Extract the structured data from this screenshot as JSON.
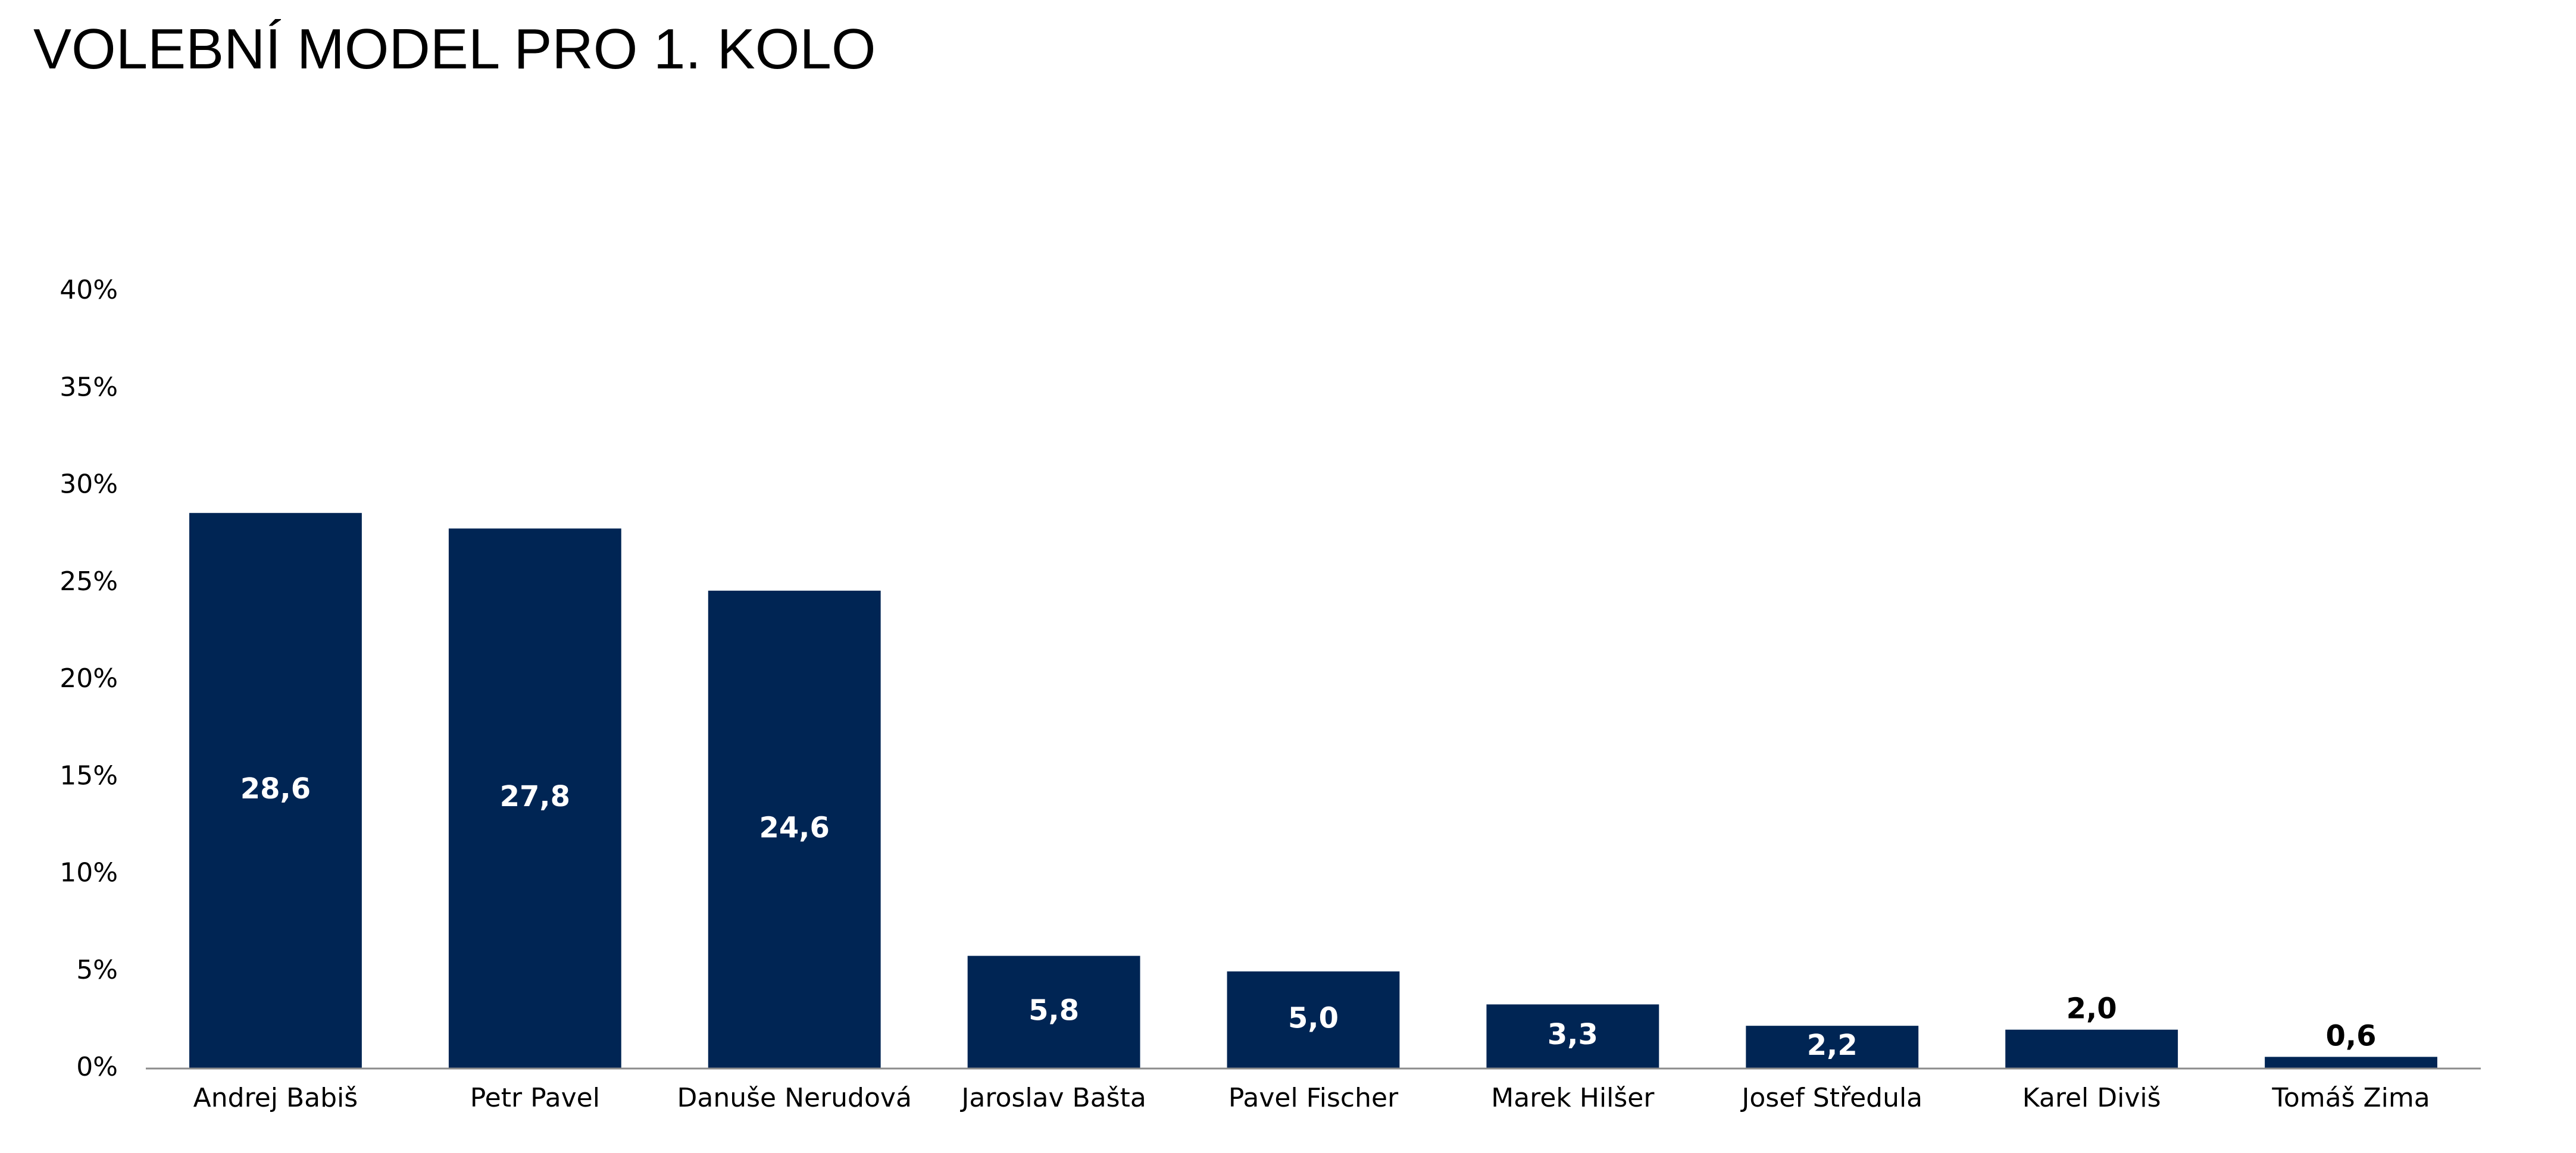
{
  "title": "VOLEBNÍ MODEL PRO 1. KOLO",
  "chart_data": {
    "type": "bar",
    "title": "VOLEBNÍ MODEL PRO 1. KOLO",
    "xlabel": "",
    "ylabel": "",
    "categories": [
      "Andrej Babiš",
      "Petr Pavel",
      "Danuše Nerudová",
      "Jaroslav Bašta",
      "Pavel Fischer",
      "Marek Hilšer",
      "Josef Středula",
      "Karel Diviš",
      "Tomáš Zima"
    ],
    "values": [
      28.6,
      27.8,
      24.6,
      5.8,
      5.0,
      3.3,
      2.2,
      2.0,
      0.6
    ],
    "data_labels": [
      "28,6",
      "27,8",
      "24,6",
      "5,8",
      "5,0",
      "3,3",
      "2,2",
      "2,0",
      "0,6"
    ],
    "yticks": [
      "0%",
      "5%",
      "10%",
      "15%",
      "20%",
      "25%",
      "30%",
      "35%",
      "40%"
    ],
    "ylim": [
      0,
      40
    ],
    "grid": false,
    "legend": "none",
    "bar_color": "#002554",
    "label_color_inside": "#ffffff",
    "label_color_outside": "#000000"
  }
}
